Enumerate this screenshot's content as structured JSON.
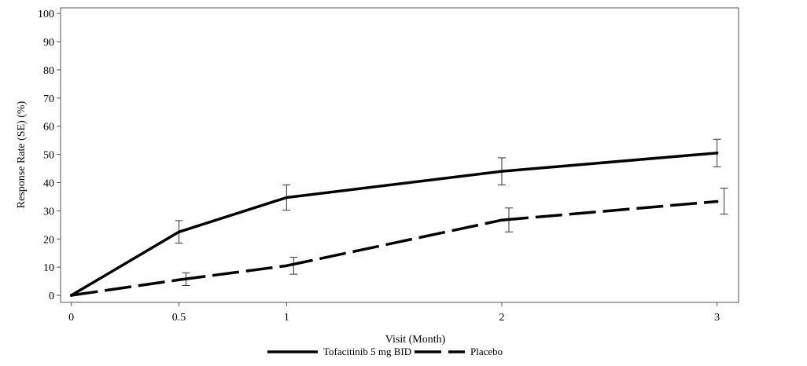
{
  "chart_data": {
    "type": "line",
    "xlabel": "Visit (Month)",
    "ylabel": "Response Rate (SE) (%)",
    "xlim": [
      -0.05,
      3.1
    ],
    "ylim": [
      -2.5,
      102
    ],
    "x_ticks": [
      {
        "value": 0,
        "label": "0"
      },
      {
        "value": 0.5,
        "label": "0.5"
      },
      {
        "value": 1,
        "label": "1"
      },
      {
        "value": 2,
        "label": "2"
      },
      {
        "value": 3,
        "label": "3"
      }
    ],
    "y_ticks": [
      {
        "value": 0,
        "label": "0"
      },
      {
        "value": 10,
        "label": "10"
      },
      {
        "value": 20,
        "label": "20"
      },
      {
        "value": 30,
        "label": "30"
      },
      {
        "value": 40,
        "label": "40"
      },
      {
        "value": 50,
        "label": "50"
      },
      {
        "value": 60,
        "label": "60"
      },
      {
        "value": 70,
        "label": "70"
      },
      {
        "value": 80,
        "label": "80"
      },
      {
        "value": 90,
        "label": "90"
      },
      {
        "value": 100,
        "label": "100"
      }
    ],
    "grid": false,
    "legend_position": "bottom-center",
    "series": [
      {
        "name": "Tofacitinib 5 mg BID",
        "style": "solid",
        "color": "#000000",
        "points": [
          {
            "x": 0,
            "y": 0
          },
          {
            "x": 0.5,
            "y": 22.5,
            "err_low": 18.5,
            "err_high": 26.5
          },
          {
            "x": 1,
            "y": 34.7,
            "err_low": 30.2,
            "err_high": 39.2
          },
          {
            "x": 2,
            "y": 44.0,
            "err_low": 39.2,
            "err_high": 48.8
          },
          {
            "x": 3,
            "y": 50.5,
            "err_low": 45.6,
            "err_high": 55.4
          }
        ]
      },
      {
        "name": "Placebo",
        "style": "dashed",
        "color": "#000000",
        "points": [
          {
            "x": 0,
            "y": 0
          },
          {
            "x": 0.5,
            "y": 5.5,
            "err_low": 3.5,
            "err_high": 8.0
          },
          {
            "x": 1,
            "y": 10.5,
            "err_low": 7.5,
            "err_high": 13.5
          },
          {
            "x": 2,
            "y": 26.7,
            "err_low": 22.5,
            "err_high": 31.0
          },
          {
            "x": 3,
            "y": 33.3,
            "err_low": 28.8,
            "err_high": 38.0
          }
        ]
      }
    ]
  }
}
